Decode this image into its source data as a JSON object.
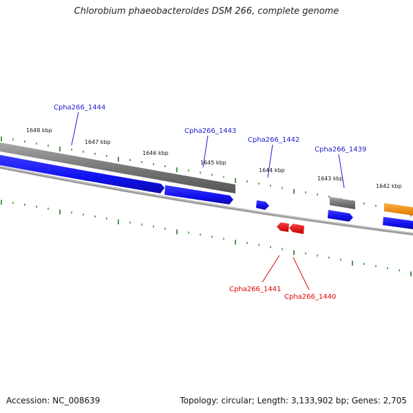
{
  "title": "Chlorobium phaeobacteroides DSM 266, complete genome",
  "footer": {
    "accession": "Accession: NC_008639",
    "summary": "Topology: circular; Length: 3,133,902 bp; Genes: 2,705"
  },
  "colors": {
    "forward_gene": "#1a1aff",
    "reverse_gene": "#ff0000",
    "other_feature": "#777777",
    "highlight_feature": "#ff9900",
    "tick": "#1a7a1a",
    "backbone": "#888888"
  },
  "ticks": [
    {
      "label": "1648 kbp"
    },
    {
      "label": "1647 kbp"
    },
    {
      "label": "1646 kbp"
    },
    {
      "label": "1645 kbp"
    },
    {
      "label": "1644 kbp"
    },
    {
      "label": "1643 kbp"
    },
    {
      "label": "1642 kbp"
    }
  ],
  "gene_labels": [
    {
      "name": "Cpha266_1444",
      "strand": "forward"
    },
    {
      "name": "Cpha266_1443",
      "strand": "forward"
    },
    {
      "name": "Cpha266_1442",
      "strand": "forward"
    },
    {
      "name": "Cpha266_1439",
      "strand": "forward"
    },
    {
      "name": "Cpha266_1441",
      "strand": "reverse"
    },
    {
      "name": "Cpha266_1440",
      "strand": "reverse"
    }
  ]
}
